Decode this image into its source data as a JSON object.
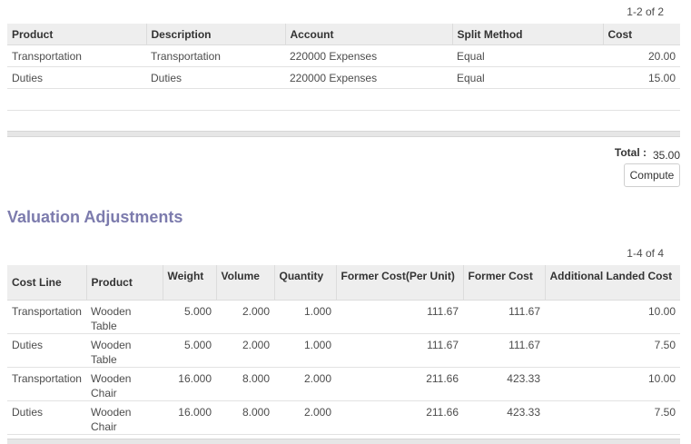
{
  "cost_lines": {
    "pager": "1-2 of 2",
    "headers": [
      "Product",
      "Description",
      "Account",
      "Split Method",
      "Cost"
    ],
    "rows": [
      {
        "product": "Transportation",
        "description": "Transportation",
        "account": "220000 Expenses",
        "split_method": "Equal",
        "cost": "20.00"
      },
      {
        "product": "Duties",
        "description": "Duties",
        "account": "220000 Expenses",
        "split_method": "Equal",
        "cost": "15.00"
      }
    ]
  },
  "total": {
    "label": "Total :",
    "value": "35.00"
  },
  "compute_label": "Compute",
  "valuation": {
    "title": "Valuation Adjustments",
    "pager": "1-4 of 4",
    "headers": [
      "Cost Line",
      "Product",
      "Weight",
      "Volume",
      "Quantity",
      "Former Cost(Per Unit)",
      "Former Cost",
      "Additional Landed Cost"
    ],
    "rows": [
      {
        "cost_line": "Transportation",
        "product": "Wooden Table",
        "weight": "5.000",
        "volume": "2.000",
        "quantity": "1.000",
        "former_cost_unit": "111.67",
        "former_cost": "111.67",
        "additional": "10.00"
      },
      {
        "cost_line": "Duties",
        "product": "Wooden Table",
        "weight": "5.000",
        "volume": "2.000",
        "quantity": "1.000",
        "former_cost_unit": "111.67",
        "former_cost": "111.67",
        "additional": "7.50"
      },
      {
        "cost_line": "Transportation",
        "product": "Wooden Chair",
        "weight": "16.000",
        "volume": "8.000",
        "quantity": "2.000",
        "former_cost_unit": "211.66",
        "former_cost": "423.33",
        "additional": "10.00"
      },
      {
        "cost_line": "Duties",
        "product": "Wooden Chair",
        "weight": "16.000",
        "volume": "8.000",
        "quantity": "2.000",
        "former_cost_unit": "211.66",
        "former_cost": "423.33",
        "additional": "7.50"
      }
    ]
  }
}
